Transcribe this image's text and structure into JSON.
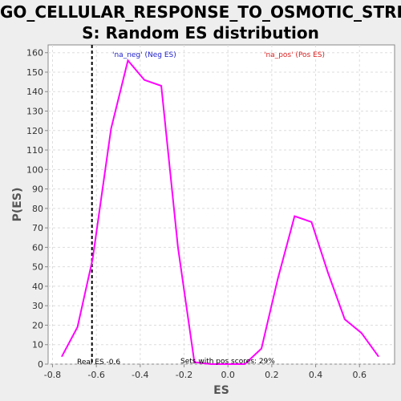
{
  "chart_data": {
    "type": "line",
    "title_line1": "GO_CELLULAR_RESPONSE_TO_OSMOTIC_STRES",
    "title_line2": "S: Random ES distribution",
    "xlabel": "ES",
    "ylabel": "P(ES)",
    "xlim": [
      -0.82,
      0.76
    ],
    "ylim": [
      0,
      164
    ],
    "xticks": [
      -0.8,
      -0.6,
      -0.4,
      -0.2,
      0.0,
      0.2,
      0.4,
      0.6
    ],
    "xtick_labels": [
      "-0.8",
      "-0.6",
      "-0.4",
      "-0.2",
      "0.0",
      "0.2",
      "0.4",
      "0.6"
    ],
    "yticks": [
      0,
      10,
      20,
      30,
      40,
      50,
      60,
      70,
      80,
      90,
      100,
      110,
      120,
      130,
      140,
      150,
      160
    ],
    "ytick_labels": [
      "0",
      "10",
      "20",
      "30",
      "40",
      "50",
      "60",
      "70",
      "80",
      "90",
      "100",
      "110",
      "120",
      "130",
      "140",
      "150",
      "160"
    ],
    "grid": true,
    "series": [
      {
        "color": "#ff00ff",
        "x": [
          -0.757,
          -0.686,
          -0.617,
          -0.533,
          -0.456,
          -0.381,
          -0.304,
          -0.228,
          -0.153,
          -0.077,
          0.0,
          0.077,
          0.153,
          0.228,
          0.304,
          0.381,
          0.456,
          0.533,
          0.609,
          0.686
        ],
        "y": [
          4,
          19,
          54,
          121,
          156,
          146,
          143,
          60,
          1,
          0,
          0,
          0,
          8,
          44,
          76,
          73,
          47,
          23,
          16,
          4
        ]
      }
    ],
    "real_es": -0.62,
    "real_es_color": "#000000",
    "annotations": {
      "neg_label": "'na_neg' (Neg ES)",
      "neg_color": "#2222cc",
      "pos_label": "'na_pos' (Pos ES)",
      "pos_color": "#dd2222",
      "real_es_label": "Real ES -0.6",
      "pos_scores_label": "Sets with pos scores: 29%"
    }
  }
}
